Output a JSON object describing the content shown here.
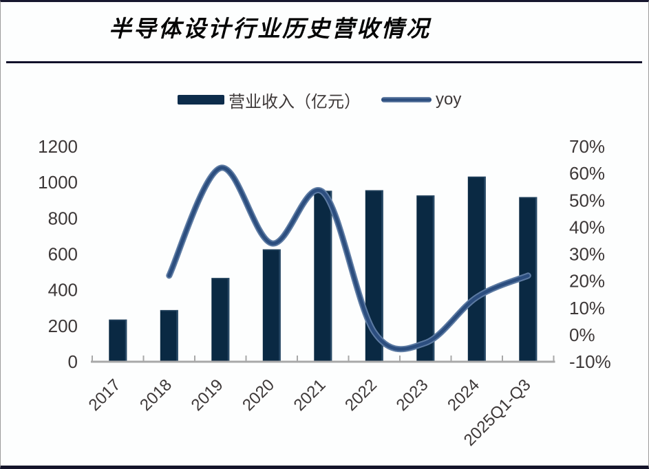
{
  "card": {
    "title": "半导体设计行业历史营收情况"
  },
  "legend": [
    {
      "label": "营业收入（亿元）",
      "swatch": "bar-swatch"
    },
    {
      "label": "yoy",
      "swatch": "line-swatch"
    }
  ],
  "colors": {
    "bar_fill": "#0a2943",
    "bar_edge_highlight": "#2e4f6c",
    "line_core": "#2c4e7f",
    "line_rim": "#5d7ba3",
    "axis_line": "#a8a8a8",
    "tick_text": "#3d3838",
    "title_text": "#050505",
    "divider": "#10102a"
  },
  "chart_data": {
    "type": "combo (bar + line)",
    "title": "半导体设计行业历史营收情况",
    "categories": [
      "2017",
      "2018",
      "2019",
      "2020",
      "2021",
      "2022",
      "2023",
      "2024",
      "2025Q1-Q3"
    ],
    "series": [
      {
        "name": "营业收入（亿元）",
        "type": "bar",
        "axis": "left",
        "values": [
          235,
          288,
          467,
          627,
          953,
          956,
          927,
          1032,
          918
        ]
      },
      {
        "name": "yoy",
        "type": "line",
        "axis": "right",
        "unit": "%",
        "values": [
          null,
          22,
          62,
          34,
          53,
          1,
          -3,
          14,
          22
        ]
      }
    ],
    "left_axis": {
      "min": 0,
      "max": 1200,
      "step": 200,
      "tick_labels": [
        "0",
        "200",
        "400",
        "600",
        "800",
        "1000",
        "1200"
      ]
    },
    "right_axis": {
      "min": -10,
      "max": 70,
      "step": 10,
      "tick_labels": [
        "-10%",
        "0%",
        "10%",
        "20%",
        "30%",
        "40%",
        "50%",
        "60%",
        "70%"
      ]
    },
    "grid": false,
    "legend_position": "top",
    "x_label_rotation_deg": -45
  }
}
